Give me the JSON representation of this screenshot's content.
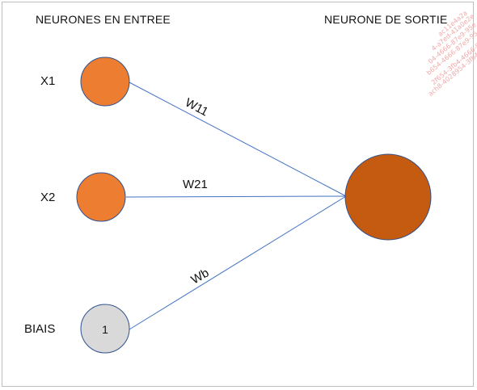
{
  "headings": {
    "inputs": "NEURONES EN ENTREE",
    "output": "NEURONE DE SORTIE"
  },
  "nodes": {
    "x1": {
      "label": "X1",
      "color": "#ed7d31"
    },
    "x2": {
      "label": "X2",
      "color": "#ed7d31"
    },
    "bias": {
      "label": "BIAIS",
      "value": "1",
      "color": "#d9d9d9"
    },
    "output": {
      "color": "#c55a11"
    }
  },
  "edges": {
    "w11": "W11",
    "w21": "W21",
    "wb": "Wb"
  },
  "colors": {
    "edge": "#4472c4",
    "outline": "#2f528f",
    "watermark": "#f1a9a9"
  },
  "watermark": [
    "ac11e4a2a",
    "4-a7ed-41a0e2e",
    "04-4666-87e9-95e",
    "b654-4666-87e9-95ec",
    "2f654-3fb4-4666-8",
    "ach8-4028954-3fb4-466"
  ]
}
